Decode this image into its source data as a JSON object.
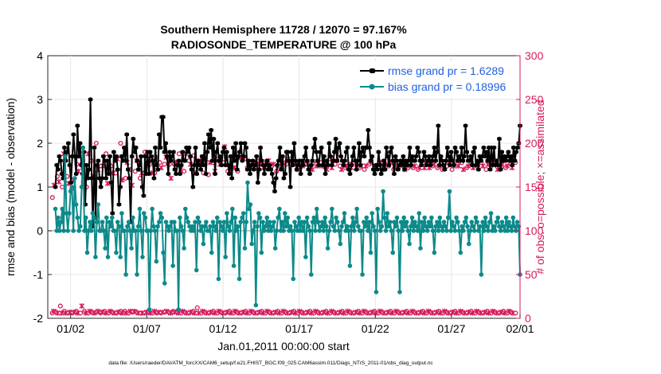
{
  "colors": {
    "rmse": "#000000",
    "bias": "#0d8a8a",
    "obs": "#d6195c",
    "zero_line": "#b4b4b4",
    "legend_text": "#1f5fe0"
  },
  "chart_data": {
    "type": "line",
    "title_line1": "Southern Hemisphere 11728 / 12070 = 97.167%",
    "title_line2": "RADIOSONDE_TEMPERATURE @ 100 hPa",
    "xlabel": "Jan.01,2011 00:00:00 start",
    "ylabel_left": "rmse and bias (model - observation)",
    "ylabel_right": "# of obs: o=possible; ×=assimilated",
    "footer": "data file: /Users/raeder/DAI/ATM_forcXX/CAM6_setup/f.e21.FHIST_BGC.f09_025.CAM6assim.011/Diags_NTrS_2011-01/obs_diag_output.nc",
    "xlim": [
      0.5,
      31.5
    ],
    "ylim_left": [
      -2,
      4
    ],
    "ylim_right": [
      0,
      300
    ],
    "left_ticks": [
      "4",
      "3",
      "2",
      "1",
      "0",
      "-1",
      "-2"
    ],
    "left_tick_values": [
      4,
      3,
      2,
      1,
      0,
      -1,
      -2
    ],
    "right_ticks": [
      "300",
      "250",
      "200",
      "150",
      "100",
      "50",
      "0"
    ],
    "right_tick_values": [
      300,
      250,
      200,
      150,
      100,
      50,
      0
    ],
    "x_ticks": [
      "01/02",
      "01/07",
      "01/12",
      "01/17",
      "01/22",
      "01/27",
      "02/01"
    ],
    "x_tick_values": [
      2,
      7,
      12,
      17,
      22,
      27,
      32
    ],
    "grid": true,
    "legend_position": "top-right",
    "series": [
      {
        "name": "rmse grand pr = 1.6289",
        "axis": "left",
        "values": [
          1.0,
          1.5,
          1.4,
          1.7,
          1.6,
          1.3,
          1.2,
          1.9,
          1.6,
          1.8,
          2.0,
          1.5,
          1.1,
          1.7,
          2.2,
          1.7,
          1.3,
          2.4,
          1.7,
          2.0,
          1.5,
          1.3,
          1.8,
          0.6,
          1.5,
          1.2,
          1.4,
          3.0,
          1.2,
          0.1,
          1.9,
          0.3,
          1.5,
          1.6,
          1.2,
          1.0,
          1.2,
          1.7,
          1.6,
          1.2,
          1.6,
          1.3,
          1.7,
          1.1,
          0.4,
          1.8,
          1.6,
          1.7,
          1.4,
          0.6,
          1.0,
          1.7,
          1.6,
          1.9,
          1.6,
          2.2,
          1.4,
          1.2,
          0.2,
          1.7,
          2.1,
          1.8,
          1.9,
          1.6,
          1.4,
          1.5,
          1.7,
          1.0,
          0.8,
          1.7,
          1.3,
          1.8,
          1.3,
          1.8,
          1.7,
          1.6,
          1.2,
          1.9,
          1.5,
          1.4,
          2.2,
          1.9,
          2.6,
          2.6,
          1.8,
          2.0,
          1.7,
          1.3,
          1.8,
          1.6,
          1.7,
          1.8,
          1.4,
          1.3,
          1.5,
          1.6,
          1.3,
          1.5,
          1.8,
          1.6,
          1.6,
          1.9,
          1.8,
          1.9,
          1.7,
          1.4,
          1.0,
          1.5,
          1.9,
          1.3,
          1.6,
          1.5,
          1.4,
          1.7,
          1.5,
          2.0,
          1.3,
          1.8,
          2.2,
          1.9,
          2.3,
          1.6,
          2.1,
          1.3,
          1.8,
          2.0,
          1.6,
          1.7,
          1.5,
          1.8,
          1.9,
          1.5,
          1.8,
          1.5,
          1.3,
          1.7,
          1.2,
          1.9,
          1.6,
          2.0,
          1.4,
          1.7,
          1.8,
          2.0,
          1.6,
          1.7,
          2.0,
          1.9,
          1.4,
          1.6,
          1.3,
          1.5,
          1.6,
          1.4,
          1.5,
          1.7,
          1.1,
          1.4,
          1.9,
          1.6,
          1.5,
          1.3,
          1.5,
          1.6,
          1.4,
          1.5,
          1.4,
          1.3,
          1.1,
          0.9,
          1.2,
          1.5,
          1.6,
          1.9,
          1.4,
          1.7,
          1.2,
          1.3,
          1.8,
          1.8,
          1.6,
          1.0,
          1.8,
          1.5,
          2.0,
          1.6,
          1.4,
          1.5,
          1.6,
          1.3,
          1.6,
          1.5,
          1.7,
          1.9,
          1.6,
          1.4,
          1.3,
          1.5,
          1.6,
          1.9,
          2.1,
          1.8,
          1.6,
          1.5,
          1.8,
          1.9,
          1.5,
          1.7,
          1.3,
          1.6,
          1.5,
          2.0,
          1.7,
          1.5,
          1.6,
          1.8,
          2.1,
          1.6,
          1.9,
          2.0,
          1.7,
          1.6,
          1.5,
          1.6,
          1.8,
          1.9,
          1.4,
          1.3,
          1.5,
          1.7,
          1.9,
          1.6,
          1.4,
          1.6,
          2.0,
          1.5,
          1.8,
          1.9,
          1.7,
          1.9,
          1.9,
          2.3,
          1.9,
          1.6,
          1.7,
          1.4,
          1.3,
          1.5,
          1.4,
          1.8,
          1.5,
          1.3,
          1.4,
          1.6,
          1.4,
          1.9,
          1.7,
          1.5,
          1.8,
          1.9,
          1.6,
          1.3,
          1.7,
          1.6,
          1.4,
          1.5,
          1.6,
          1.5,
          1.7,
          1.4,
          1.6,
          1.5,
          1.6,
          1.9,
          1.5,
          1.7,
          1.6,
          1.6,
          1.7,
          1.9,
          1.8,
          1.6,
          1.5,
          1.6,
          1.8,
          1.7,
          1.5,
          1.6,
          1.7,
          1.5,
          1.6,
          1.7,
          1.9,
          1.6,
          1.8,
          2.4,
          1.5,
          1.7,
          1.6,
          1.5,
          1.4,
          1.6,
          1.9,
          1.7,
          1.5,
          1.8,
          1.6,
          1.5,
          1.9,
          1.8,
          1.6,
          1.7,
          1.6,
          1.9,
          1.6,
          1.7,
          2.4,
          1.8,
          1.6,
          1.6,
          1.7,
          1.5,
          1.8,
          1.9,
          1.5,
          1.6,
          1.4,
          1.7,
          1.6,
          1.7,
          1.9,
          1.7,
          1.8,
          1.6,
          1.9,
          1.4,
          1.9,
          1.5,
          1.9,
          1.5,
          1.6,
          1.5,
          2.1,
          1.4,
          1.8,
          1.6,
          1.7,
          1.6,
          1.7,
          1.8,
          1.6,
          1.7,
          1.5,
          1.9,
          1.6,
          1.8,
          1.9,
          2.0,
          2.4
        ]
      },
      {
        "name": "bias grand pr = 0.18996",
        "axis": "left",
        "values": [
          0.5,
          0.0,
          0.3,
          0.0,
          0.2,
          0.5,
          0.0,
          1.7,
          0.4,
          0.0,
          0.4,
          0.9,
          1.0,
          0.0,
          1.2,
          0.6,
          0.3,
          0.0,
          0.1,
          1.0,
          1.9,
          0.0,
          0.3,
          -0.5,
          0.0,
          0.2,
          0.0,
          0.4,
          0.3,
          -0.6,
          0.2,
          0.6,
          0.0,
          0.0,
          0.2,
          0.0,
          -0.4,
          0.3,
          -0.6,
          0.2,
          0.1,
          0.3,
          0.0,
          0.0,
          -0.5,
          0.2,
          0.1,
          -0.6,
          0.4,
          0.0,
          0.0,
          -1.0,
          0.1,
          0.2,
          0.0,
          -0.4,
          0.3,
          0.0,
          0.0,
          -1.0,
          0.1,
          0.5,
          0.0,
          -0.6,
          0.4,
          0.3,
          0.0,
          0.0,
          -1.8,
          0.0,
          0.5,
          0.1,
          0.0,
          -0.7,
          0.1,
          0.2,
          0.4,
          0.3,
          -0.5,
          -1.2,
          0.2,
          0.1,
          0.0,
          0.1,
          0.2,
          -0.8,
          0.2,
          0.0,
          0.0,
          -1.8,
          0.3,
          0.1,
          0.0,
          -0.4,
          0.5,
          0.3,
          0.2,
          0.1,
          0.0,
          0.1,
          0.0,
          0.2,
          -0.9,
          0.3,
          0.2,
          0.0,
          0.1,
          -0.3,
          0.1,
          0.2,
          0.0,
          0.0,
          0.1,
          -0.5,
          0.2,
          0.1,
          0.0,
          0.3,
          -1.1,
          0.2,
          0.1,
          0.0,
          0.2,
          -0.6,
          0.4,
          0.1,
          0.0,
          0.2,
          0.5,
          -0.8,
          0.3,
          0.0,
          0.1,
          -1.1,
          0.2,
          0.3,
          0.4,
          -0.4,
          0.2,
          1.1,
          0.5,
          0.6,
          -0.3,
          0.0,
          0.2,
          -1.7,
          0.1,
          0.4,
          0.3,
          -0.5,
          0.2,
          0.0,
          0.1,
          0.3,
          0.0,
          0.2,
          0.0,
          0.1,
          0.2,
          -0.4,
          0.0,
          0.3,
          0.5,
          0.0,
          0.2,
          0.0,
          0.4,
          0.1,
          0.3,
          0.0,
          0.1,
          0.0,
          -1.1,
          0.2,
          0.1,
          0.0,
          0.3,
          0.0,
          0.2,
          0.0,
          0.2,
          -0.6,
          0.3,
          0.1,
          0.0,
          -1.0,
          0.2,
          0.3,
          0.0,
          0.5,
          0.2,
          0.0,
          0.1,
          0.2,
          0.0,
          0.3,
          0.1,
          -0.4,
          0.0,
          0.2,
          0.5,
          0.1,
          0.0,
          0.3,
          0.2,
          0.0,
          -0.3,
          0.1,
          0.2,
          0.4,
          0.0,
          0.1,
          0.0,
          -0.8,
          0.1,
          0.3,
          0.0,
          0.2,
          0.5,
          0.1,
          0.0,
          0.0,
          -1.0,
          0.2,
          0.1,
          0.3,
          0.0,
          0.2,
          -0.5,
          0.4,
          0.1,
          0.0,
          -1.4,
          0.5,
          0.2,
          0.0,
          0.1,
          0.9,
          0.3,
          0.0,
          0.4,
          0.1,
          0.2,
          0.0,
          -0.5,
          0.2,
          0.1,
          0.3,
          0.0,
          -1.4,
          0.2,
          0.0,
          0.3,
          0.1,
          0.2,
          0.0,
          -0.3,
          0.1,
          0.3,
          0.0,
          0.2,
          0.1,
          0.0,
          0.4,
          -0.4,
          0.2,
          0.0,
          0.3,
          0.1,
          0.0,
          0.2,
          0.1,
          0.3,
          0.0,
          -0.5,
          0.1,
          0.2,
          0.0,
          0.3,
          0.1,
          0.0,
          0.2,
          0.1,
          0.0,
          0.3,
          0.9,
          0.0,
          0.2,
          0.1,
          0.0,
          0.3,
          0.2,
          0.0,
          -0.5,
          0.1,
          0.0,
          0.2,
          0.3,
          0.1,
          -0.3,
          0.0,
          0.2,
          0.1,
          0.0,
          0.3,
          0.2,
          0.0,
          0.1,
          -1.0,
          0.2,
          0.0,
          0.3,
          0.1,
          0.0,
          0.2,
          0.4,
          0.0,
          0.1,
          0.0,
          0.2,
          0.3,
          0.1,
          0.0,
          0.2,
          0.1,
          0.0,
          0.3,
          0.0,
          0.2,
          0.1,
          0.0,
          0.3,
          0.1,
          0.0,
          0.2,
          0.1,
          -1.0
        ]
      }
    ],
    "obs_possible_upper": [
      138,
      152,
      172,
      162,
      156,
      170,
      150,
      188,
      160,
      162,
      154,
      172,
      148,
      158,
      172,
      176,
      168,
      174,
      176,
      154,
      190,
      150,
      188,
      158,
      180,
      162,
      194,
      200,
      170,
      160,
      174,
      174,
      172,
      188,
      154,
      168,
      174,
      166,
      154,
      166,
      182,
      188,
      200,
      158,
      194,
      160,
      178,
      176,
      170,
      152,
      152,
      168,
      180,
      162,
      160,
      166,
      164,
      190,
      186,
      168,
      176,
      166,
      170,
      166,
      184,
      180,
      178,
      172,
      154,
      176,
      184,
      174,
      176,
      160,
      166,
      176,
      178,
      192,
      188,
      170,
      174,
      168,
      188,
      186,
      180,
      176,
      178,
      186,
      166,
      160,
      178,
      180,
      176,
      166,
      182,
      180,
      164,
      178,
      172,
      178,
      168,
      176,
      182,
      176,
      180,
      178,
      196,
      172,
      168,
      168,
      176,
      180,
      172,
      176,
      168,
      184,
      180,
      184,
      182,
      176,
      172,
      178,
      176,
      174,
      178,
      176,
      180,
      176,
      182,
      176,
      172,
      176,
      178,
      180,
      172,
      174,
      176,
      178,
      168,
      174,
      176,
      182,
      178,
      172,
      176,
      182,
      174,
      176,
      178,
      172,
      176,
      170,
      174,
      178,
      174,
      180,
      176,
      176,
      172,
      174,
      170,
      172,
      176,
      174,
      172,
      178,
      174,
      176,
      172,
      170,
      174,
      178,
      172,
      174,
      176,
      180,
      172,
      174,
      170,
      176,
      172,
      174,
      178,
      176,
      172,
      174,
      178,
      172,
      176,
      172,
      174,
      176,
      170,
      174,
      172,
      176,
      178,
      172,
      170,
      174,
      176,
      172,
      178,
      174,
      170,
      176,
      172,
      174,
      178,
      172,
      170,
      174,
      176,
      172,
      178,
      172,
      174,
      170,
      176,
      172,
      174,
      178,
      172,
      174,
      176,
      170,
      172,
      176,
      178,
      172,
      174,
      176,
      172,
      170,
      174,
      176,
      178,
      172,
      174,
      176,
      170,
      172,
      176,
      174,
      178,
      172,
      170,
      174,
      172,
      176,
      174,
      172,
      178,
      170,
      176,
      172,
      174,
      176,
      178,
      172,
      170,
      174,
      176,
      172,
      178,
      174,
      172,
      170,
      176,
      172,
      174,
      178,
      172,
      176,
      170,
      174,
      172,
      176,
      178,
      172,
      174,
      170,
      176,
      172,
      174,
      178
    ],
    "obs_possible_lower": [
      6,
      8,
      6,
      7,
      6,
      9,
      14,
      6,
      7,
      8,
      6,
      12,
      6,
      7,
      8,
      6,
      7,
      6,
      8,
      6,
      7,
      6,
      14,
      6,
      8,
      6,
      7,
      6,
      8,
      6,
      7,
      6,
      6,
      7,
      8,
      6,
      6,
      7,
      6,
      8,
      6,
      7,
      6,
      8,
      6,
      7,
      6,
      8,
      6,
      7,
      6,
      8,
      6,
      7,
      8,
      6,
      7,
      6,
      8,
      6,
      7,
      8,
      6,
      7,
      6,
      8,
      6,
      6,
      8,
      6,
      7,
      6,
      8,
      6,
      7,
      6,
      8,
      6,
      6,
      7,
      8,
      6,
      7,
      6,
      7,
      8,
      6,
      7,
      6,
      6,
      8,
      7,
      6,
      8,
      6,
      7,
      6,
      8,
      6,
      7,
      6,
      8,
      6,
      7,
      6,
      8,
      6,
      7,
      12,
      6,
      7,
      6,
      8,
      6,
      7,
      6,
      8,
      6,
      7,
      6,
      8,
      6,
      7,
      6,
      8,
      6,
      7,
      6,
      8,
      6,
      7,
      6,
      8,
      6,
      7,
      6,
      8,
      6,
      7,
      6,
      8,
      6,
      7,
      6,
      8,
      6,
      7,
      6,
      8,
      6,
      7,
      6,
      8,
      6,
      7,
      6,
      8,
      6,
      7,
      6,
      8,
      6,
      7,
      6,
      8,
      6,
      7,
      6,
      8,
      6,
      7,
      6,
      8,
      6,
      7,
      6,
      8,
      6,
      7,
      6,
      8,
      6,
      7,
      6,
      8,
      6,
      7,
      6,
      8,
      6,
      7,
      6,
      8,
      6,
      7,
      6,
      8,
      6,
      7,
      6,
      8,
      6,
      7,
      6,
      8,
      6,
      7,
      6,
      8,
      6,
      7,
      6,
      8,
      6,
      7,
      6,
      8,
      6,
      7,
      6,
      8,
      6,
      7,
      6,
      8,
      6,
      7,
      6,
      8,
      6,
      7,
      6,
      8,
      6,
      7,
      6,
      8,
      6,
      7,
      6,
      8,
      6,
      7,
      6,
      8,
      6,
      7,
      6,
      8,
      6,
      7,
      6,
      8,
      6,
      7,
      6,
      8,
      6,
      7,
      6,
      8,
      6,
      7,
      6,
      8,
      6,
      7,
      6,
      8,
      6,
      7,
      6,
      8,
      6,
      7,
      6,
      8,
      6,
      7,
      6,
      8,
      6,
      7,
      6,
      8,
      6,
      7,
      6,
      8,
      6,
      7,
      6,
      8,
      6,
      7,
      6,
      8,
      6,
      7,
      6,
      8,
      6,
      7,
      6,
      8,
      6,
      7,
      6,
      8,
      6,
      7,
      6,
      8,
      6,
      7,
      6,
      8,
      6,
      7,
      6,
      8,
      6,
      7,
      6,
      8,
      6,
      7,
      6,
      8,
      6,
      7,
      6,
      8,
      6,
      7,
      6,
      8,
      6,
      7,
      6,
      8,
      6,
      7,
      6,
      8,
      6
    ]
  }
}
